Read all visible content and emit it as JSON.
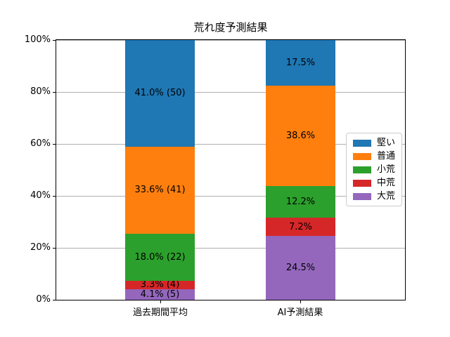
{
  "chart_data": {
    "type": "bar",
    "stacked": true,
    "title": "荒れ度予測結果",
    "xlabel": "",
    "ylabel": "",
    "categories": [
      "過去期間平均",
      "AI予測結果"
    ],
    "series": [
      {
        "name": "堅い",
        "color": "#1f77b4",
        "values": [
          41.0,
          17.5
        ],
        "labels": [
          "41.0% (50)",
          "17.5%"
        ]
      },
      {
        "name": "普通",
        "color": "#ff7f0e",
        "values": [
          33.6,
          38.6
        ],
        "labels": [
          "33.6% (41)",
          "38.6%"
        ]
      },
      {
        "name": "小荒",
        "color": "#2ca02c",
        "values": [
          18.0,
          12.2
        ],
        "labels": [
          "18.0% (22)",
          "12.2%"
        ]
      },
      {
        "name": "中荒",
        "color": "#d62728",
        "values": [
          3.3,
          7.2
        ],
        "labels": [
          "3.3% (4)",
          "7.2%"
        ]
      },
      {
        "name": "大荒",
        "color": "#9467bd",
        "values": [
          4.1,
          24.5
        ],
        "labels": [
          "4.1% (5)",
          "24.5%"
        ]
      }
    ],
    "stack_order_bottom_to_top": [
      "大荒",
      "中荒",
      "小荒",
      "普通",
      "堅い"
    ],
    "y_ticks": [
      "0%",
      "20%",
      "40%",
      "60%",
      "80%",
      "100%"
    ],
    "ylim": [
      0,
      100
    ],
    "grid": true,
    "legend_position": "center right"
  },
  "colors": {
    "grid": "#b0b0b0",
    "spine": "#000000",
    "background": "#ffffff",
    "label_text": "#000000"
  }
}
